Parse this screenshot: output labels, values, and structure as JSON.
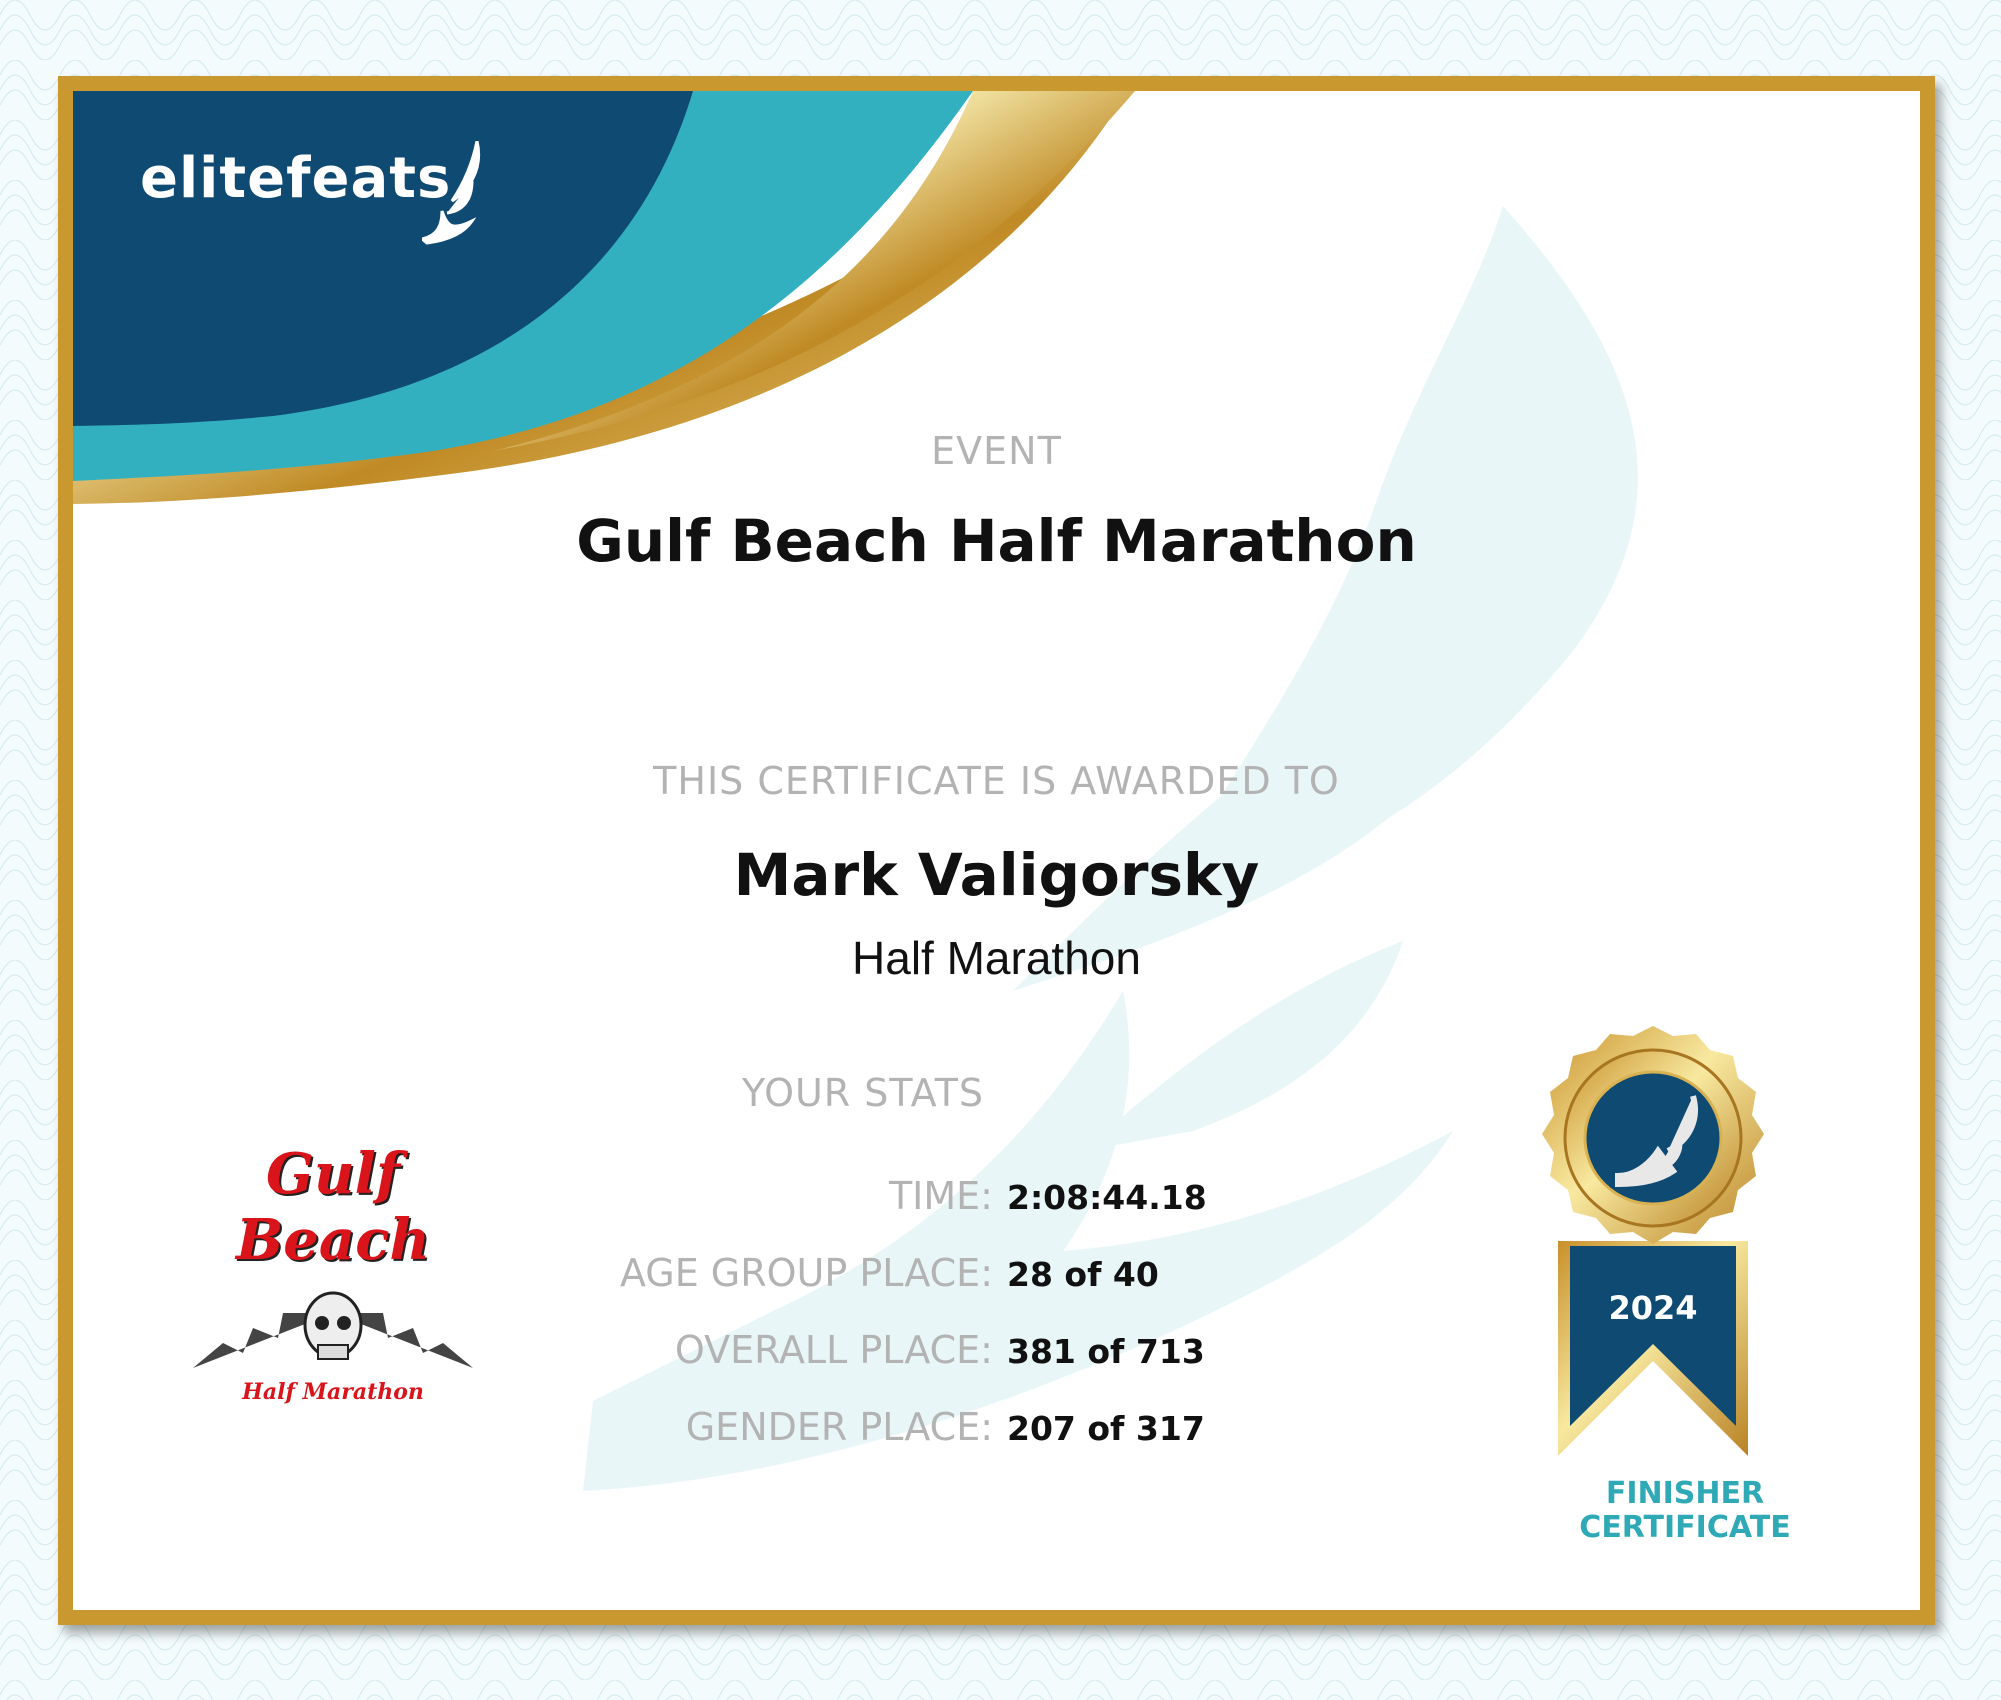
{
  "brand": {
    "logo_text": "elitefeats"
  },
  "event": {
    "label": "EVENT",
    "title": "Gulf Beach Half Marathon"
  },
  "award": {
    "label": "THIS CERTIFICATE IS AWARDED TO",
    "name": "Mark Valigorsky",
    "division": "Half Marathon"
  },
  "stats": {
    "label": "YOUR STATS",
    "rows": [
      {
        "key": "TIME:",
        "value": "2:08:44.18"
      },
      {
        "key": "AGE GROUP PLACE:",
        "value": "28 of 40"
      },
      {
        "key": "OVERALL PLACE:",
        "value": "381 of 713"
      },
      {
        "key": "GENDER PLACE:",
        "value": "207 of 317"
      }
    ]
  },
  "race_logo": {
    "line1": "Gulf Beach",
    "line2": "Half Marathon"
  },
  "medal": {
    "year": "2024",
    "caption_line1": "FINISHER",
    "caption_line2": "CERTIFICATE"
  },
  "colors": {
    "navy": "#0f4a73",
    "teal": "#33b0bf",
    "gold": "#c9982e",
    "caption": "#2fa9b6"
  }
}
